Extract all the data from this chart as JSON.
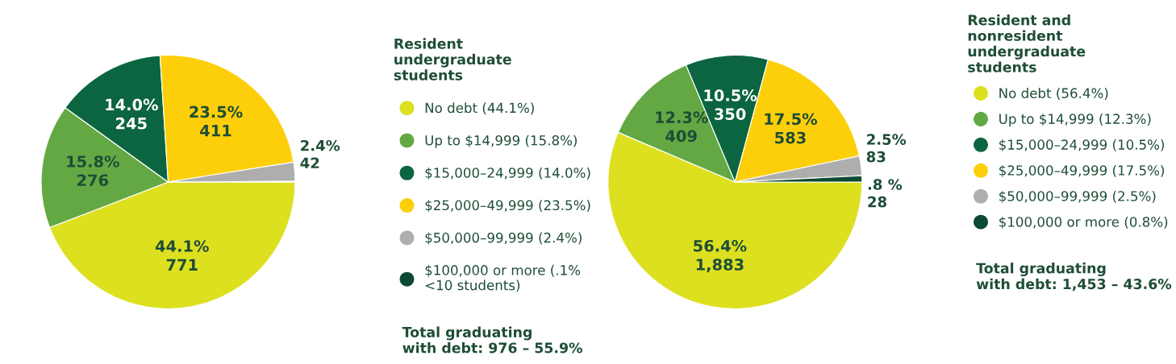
{
  "chart_data": [
    {
      "type": "pie",
      "legend_title": "Resident\nundergraduate\nstudents",
      "legend": "right",
      "categories": [
        "No debt (44.1%)",
        "Up to $14,999 (15.8%)",
        "$15,000–24,999 (14.0%)",
        "$25,000–49,999 (23.5%)",
        "$50,000–99,999 (2.4%)",
        "$100,000 or more (.1%\n<10 students)"
      ],
      "values": [
        44.1,
        15.8,
        14.0,
        23.5,
        2.4,
        0.1
      ],
      "colors": [
        "#dde01f",
        "#64a844",
        "#0b6540",
        "#fdcf0a",
        "#aeaeae",
        "#0d4a33"
      ],
      "value_labels": [
        "44.1%\n771",
        "15.8%\n276",
        "14.0%\n245",
        "23.5%\n411",
        "2.4%\n42",
        null
      ],
      "annotations": [
        "Total graduating\nwith debt: 976 – 55.9%"
      ]
    },
    {
      "type": "pie",
      "legend_title": "Resident and\nnonresident\nundergraduate\nstudents",
      "legend": "right",
      "categories": [
        "No debt (56.4%)",
        "Up to $14,999 (12.3%)",
        "$15,000–24,999 (10.5%)",
        "$25,000–49,999 (17.5%)",
        "$50,000–99,999 (2.5%)",
        "$100,000 or more (0.8%)"
      ],
      "values": [
        56.4,
        12.3,
        10.5,
        17.5,
        2.5,
        0.8
      ],
      "colors": [
        "#dde01f",
        "#64a844",
        "#0b6540",
        "#fdcf0a",
        "#aeaeae",
        "#0d4a33"
      ],
      "value_labels": [
        "56.4%\n1,883",
        "12.3%\n409",
        "10.5%\n350",
        "17.5%\n583",
        "2.5%\n83",
        ".8 %\n28"
      ],
      "annotations": [
        "Total graduating\nwith debt: 1,453 – 43.6%"
      ]
    }
  ]
}
